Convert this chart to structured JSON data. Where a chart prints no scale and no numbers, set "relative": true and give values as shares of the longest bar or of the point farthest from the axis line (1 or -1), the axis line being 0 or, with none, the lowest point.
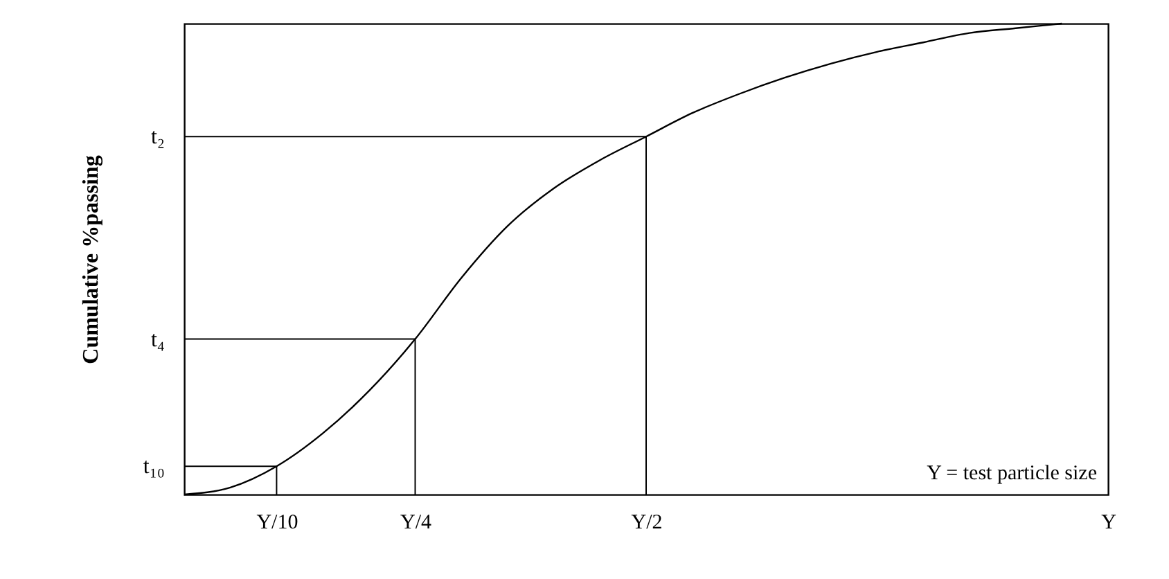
{
  "chart_data": {
    "type": "line",
    "ylabel": "Cumulative %passing",
    "relative": true,
    "categories": [
      null,
      null,
      "Y/10",
      null,
      null,
      "Y/4",
      null,
      null,
      null,
      null,
      "Y/2",
      null,
      null,
      null,
      null,
      null,
      null,
      null,
      null,
      null,
      "Y"
    ],
    "series": [
      {
        "color": "#000000",
        "values": [
          0,
          0.015,
          0.06,
          0.13,
          0.22,
          0.33,
          0.46,
          0.57,
          0.65,
          0.71,
          0.76,
          0.81,
          0.85,
          0.885,
          0.915,
          0.94,
          0.96,
          0.98,
          0.99,
          1,
          null
        ]
      }
    ],
    "annotations": [
      "t₁₀",
      "t₄",
      "t₂",
      "Y = test particle size"
    ]
  }
}
